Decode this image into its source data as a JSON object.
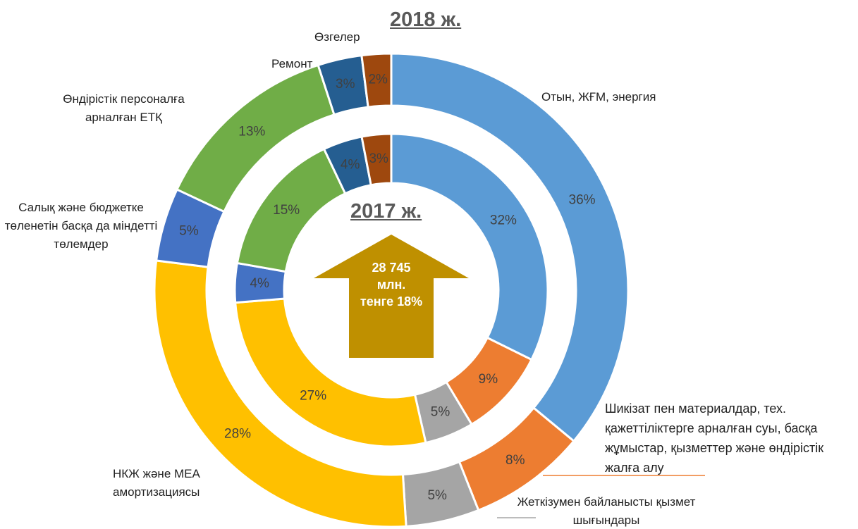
{
  "chart_data": {
    "type": "donut",
    "categories": [
      "Отын, ЖҒМ, энергия",
      "Шикізат пен материалдар, тех. қажеттіліктерге арналған суы, басқа жұмыстар, қызметтер және өндірістік жалға алу",
      "Жеткізумен байланысты қызмет шығындары",
      "НКЖ және МЕА амортизациясы",
      "Салық және бюджетке төленетін басқа да міндетті төлемдер",
      "Өндірістік персоналға арналған ЕТҚ",
      "Ремонт",
      "Өзгелер"
    ],
    "colors": [
      "#5b9bd5",
      "#ed7d31",
      "#a5a5a5",
      "#ffc000",
      "#4472c4",
      "#70ad47",
      "#255e91",
      "#9e480e"
    ],
    "series": [
      {
        "name": "2018 ж.",
        "values": [
          36,
          8,
          5,
          28,
          5,
          13,
          3,
          2
        ],
        "value_labels": [
          "36%",
          "8%",
          "5%",
          "28%",
          "5%",
          "13%",
          "3%",
          "2%"
        ]
      },
      {
        "name": "2017 ж.",
        "values": [
          32,
          9,
          5,
          27,
          4,
          15,
          4,
          3
        ],
        "value_labels": [
          "32%",
          "9%",
          "5%",
          "27%",
          "4%",
          "15%",
          "4%",
          "3%"
        ]
      }
    ],
    "annotation": "28 745 млн. тенге 18%"
  }
}
